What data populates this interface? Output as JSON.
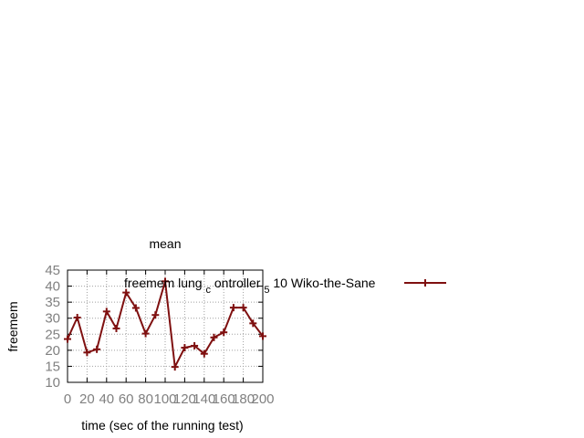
{
  "chart_data": {
    "type": "line",
    "title": "mean",
    "xlabel": "time (sec of the running test)",
    "ylabel": "freemem",
    "xlim": [
      0,
      200
    ],
    "ylim": [
      10,
      45
    ],
    "xticks": [
      0,
      20,
      40,
      60,
      80,
      100,
      120,
      140,
      160,
      180,
      200
    ],
    "yticks": [
      10,
      15,
      20,
      25,
      30,
      35,
      40,
      45
    ],
    "grid": true,
    "legend_position": "top-right",
    "series": [
      {
        "name": "freemem lung_controller_5 10 Wiko-the-Sane",
        "legend_parts": {
          "main": "freemem lung",
          "sub1": "c",
          "mid": "ontroller",
          "sub2": "5",
          "tail": "10",
          "suffix": "Wiko-the-Sane"
        },
        "color": "#7f1010",
        "marker": "plus",
        "x": [
          0,
          10,
          20,
          30,
          40,
          50,
          60,
          70,
          80,
          90,
          100,
          110,
          120,
          130,
          140,
          150,
          160,
          170,
          180,
          190,
          200
        ],
        "y": [
          23.5,
          30.2,
          19.3,
          20.3,
          32.1,
          26.8,
          38.0,
          33.2,
          25.2,
          31.0,
          41.5,
          14.8,
          20.8,
          21.4,
          18.9,
          24.0,
          25.6,
          33.3,
          33.3,
          28.4,
          24.4
        ]
      }
    ]
  }
}
